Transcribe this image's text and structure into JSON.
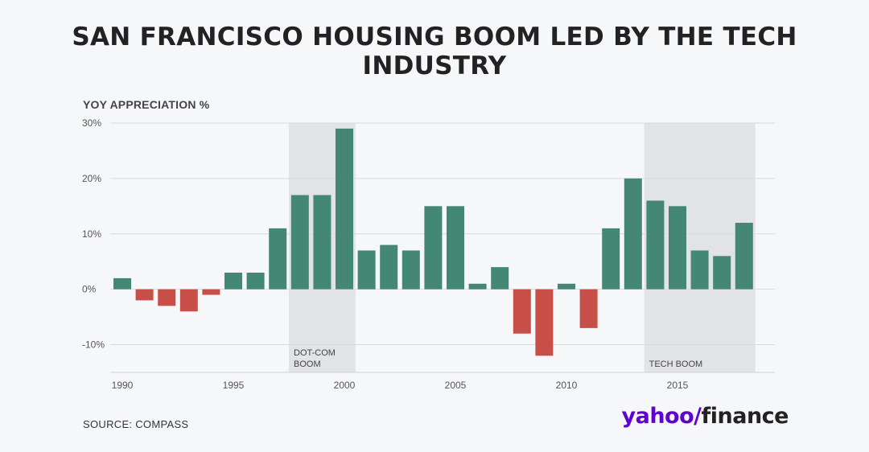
{
  "title": "SAN FRANCISCO HOUSING BOOM LED BY THE TECH INDUSTRY",
  "source": "SOURCE: COMPASS",
  "logo": {
    "part1": "yahoo",
    "slash": "/",
    "part2": "finance"
  },
  "colors": {
    "positive": "#458775",
    "negative": "#c84f48",
    "shade": "#e2e3e5",
    "grid": "#d8d9dc"
  },
  "chart_data": {
    "type": "bar",
    "ylabel": "YOY APPRECIATION %",
    "ylim": [
      -15,
      30
    ],
    "yticks": [
      -10,
      0,
      10,
      20,
      30
    ],
    "ytick_labels": [
      "-10%",
      "0%",
      "10%",
      "20%",
      "30%"
    ],
    "xticks": [
      1990,
      1995,
      2000,
      2005,
      2010,
      2015
    ],
    "grid": true,
    "years": [
      1990,
      1991,
      1992,
      1993,
      1994,
      1995,
      1996,
      1997,
      1998,
      1999,
      2000,
      2001,
      2002,
      2003,
      2004,
      2005,
      2006,
      2007,
      2008,
      2009,
      2010,
      2011,
      2012,
      2013,
      2014,
      2015,
      2016,
      2017,
      2018
    ],
    "values": [
      2,
      -2,
      -3,
      -4,
      -1,
      3,
      3,
      11,
      17,
      17,
      29,
      7,
      8,
      7,
      15,
      15,
      1,
      4,
      -8,
      -12,
      1,
      -7,
      11,
      20,
      16,
      15,
      7,
      6,
      12
    ],
    "annotations": [
      {
        "label": "DOT-COM BOOM",
        "lines": [
          "DOT-COM",
          "BOOM"
        ],
        "from": 1997.5,
        "to": 2000.5
      },
      {
        "label": "TECH BOOM",
        "lines": [
          "TECH BOOM"
        ],
        "from": 2013.5,
        "to": 2018.5
      }
    ]
  }
}
